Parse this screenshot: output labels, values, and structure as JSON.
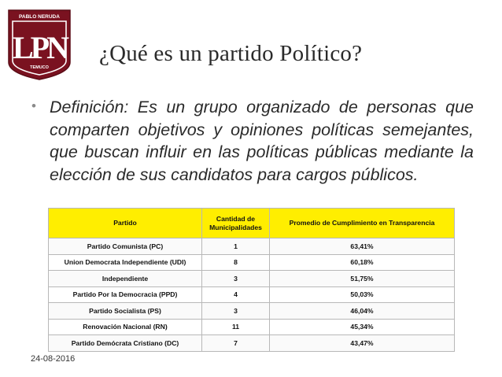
{
  "logo": {
    "top_text": "PABLO NERUDA",
    "letters": "LPN",
    "bottom_text": "TEMUCO",
    "colors": {
      "maroon": "#7a1220",
      "white": "#ffffff"
    }
  },
  "title": "¿Qué es un partido Político?",
  "bullet": "Definición: Es un grupo organizado de personas que comparten objetivos y opiniones políticas semejantes, que buscan influir en las políticas públicas mediante la elección de sus candidatos para cargos públicos.",
  "table": {
    "headers": [
      "Partido",
      "Cantidad de Municipalidades",
      "Promedio de Cumplimiento en Transparencia"
    ],
    "header_color": "#ffee00",
    "rows": [
      [
        "Partido Comunista (PC)",
        "1",
        "63,41%"
      ],
      [
        "Union Democrata Independiente (UDI)",
        "8",
        "60,18%"
      ],
      [
        "Independiente",
        "3",
        "51,75%"
      ],
      [
        "Partido Por la Democracia (PPD)",
        "4",
        "50,03%"
      ],
      [
        "Partido Socialista (PS)",
        "3",
        "46,04%"
      ],
      [
        "Renovación Nacional (RN)",
        "11",
        "45,34%"
      ],
      [
        "Partido Demócrata Cristiano (DC)",
        "7",
        "43,47%"
      ]
    ]
  },
  "date": "24-08-2016"
}
